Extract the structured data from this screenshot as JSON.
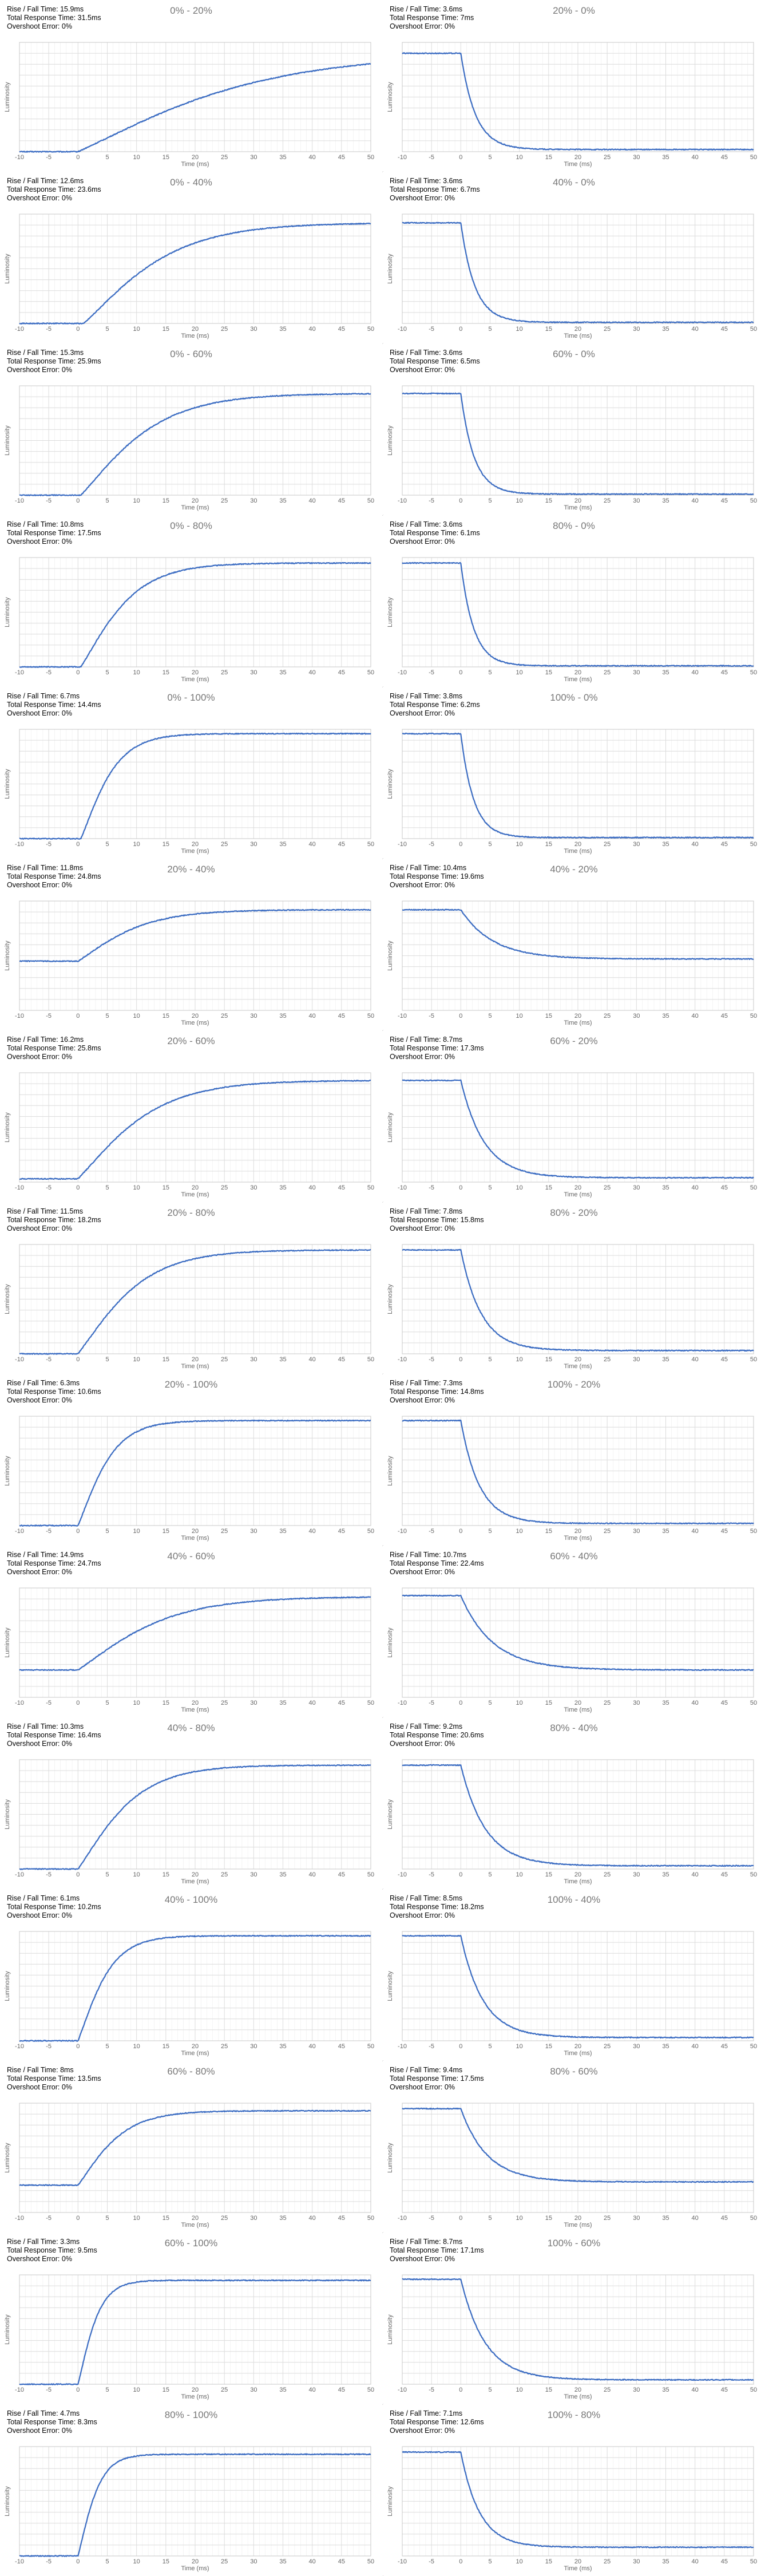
{
  "axis_label_x": "Time (ms)",
  "axis_label_y": "Luminosity",
  "x_ticks": [
    -10,
    -5,
    0,
    5,
    10,
    15,
    20,
    25,
    30,
    35,
    40,
    45,
    50
  ],
  "colors": {
    "line": "#3b6cc2",
    "grid": "#dcdcdc",
    "axis_text": "#666666",
    "title_text": "#777777",
    "divider": "#d6d6d6"
  },
  "stat_labels": {
    "rise_fall": "Rise / Fall Time: ",
    "total": "Total Response Time: ",
    "overshoot": "Overshoot Error: "
  },
  "chart_data": [
    {
      "type": "line",
      "title": "0% - 20%",
      "rise_fall_time": "15.9ms",
      "total_response_time": "31.5ms",
      "overshoot_error": "0%",
      "xlabel": "Time (ms)",
      "ylabel": "Luminosity",
      "xlim": [
        -10,
        50
      ],
      "y_start": 0.0,
      "y_end": 0.9,
      "start_delay_ms": 0.0,
      "time_constant_ms": 15.0,
      "direction": "rise"
    },
    {
      "type": "line",
      "title": "20% - 0%",
      "rise_fall_time": "3.6ms",
      "total_response_time": "7ms",
      "overshoot_error": "0%",
      "xlabel": "Time (ms)",
      "ylabel": "Luminosity",
      "xlim": [
        -10,
        50
      ],
      "y_start": 0.9,
      "y_end": 0.02,
      "start_delay_ms": 0.0,
      "time_constant_ms": 2.5,
      "direction": "fall"
    },
    {
      "type": "line",
      "title": "0% - 40%",
      "rise_fall_time": "12.6ms",
      "total_response_time": "23.6ms",
      "overshoot_error": "0%",
      "xlabel": "Time (ms)",
      "ylabel": "Luminosity",
      "xlim": [
        -10,
        50
      ],
      "y_start": 0.0,
      "y_end": 0.92,
      "start_delay_ms": 1.0,
      "time_constant_ms": 7.5,
      "direction": "rise"
    },
    {
      "type": "line",
      "title": "40% - 0%",
      "rise_fall_time": "3.6ms",
      "total_response_time": "6.7ms",
      "overshoot_error": "0%",
      "xlabel": "Time (ms)",
      "ylabel": "Luminosity",
      "xlim": [
        -10,
        50
      ],
      "y_start": 0.92,
      "y_end": 0.01,
      "start_delay_ms": 0.0,
      "time_constant_ms": 2.4,
      "direction": "fall"
    },
    {
      "type": "line",
      "title": "0% - 60%",
      "rise_fall_time": "15.3ms",
      "total_response_time": "25.9ms",
      "overshoot_error": "0%",
      "xlabel": "Time (ms)",
      "ylabel": "Luminosity",
      "xlim": [
        -10,
        50
      ],
      "y_start": 0.0,
      "y_end": 0.93,
      "start_delay_ms": 0.5,
      "time_constant_ms": 6.5,
      "direction": "rise"
    },
    {
      "type": "line",
      "title": "60% - 0%",
      "rise_fall_time": "3.6ms",
      "total_response_time": "6.5ms",
      "overshoot_error": "0%",
      "xlabel": "Time (ms)",
      "ylabel": "Luminosity",
      "xlim": [
        -10,
        50
      ],
      "y_start": 0.93,
      "y_end": 0.01,
      "start_delay_ms": 0.0,
      "time_constant_ms": 2.3,
      "direction": "fall"
    },
    {
      "type": "line",
      "title": "0% - 80%",
      "rise_fall_time": "10.8ms",
      "total_response_time": "17.5ms",
      "overshoot_error": "0%",
      "xlabel": "Time (ms)",
      "ylabel": "Luminosity",
      "xlim": [
        -10,
        50
      ],
      "y_start": 0.0,
      "y_end": 0.95,
      "start_delay_ms": 0.5,
      "time_constant_ms": 4.5,
      "direction": "rise"
    },
    {
      "type": "line",
      "title": "80% - 0%",
      "rise_fall_time": "3.6ms",
      "total_response_time": "6.1ms",
      "overshoot_error": "0%",
      "xlabel": "Time (ms)",
      "ylabel": "Luminosity",
      "xlim": [
        -10,
        50
      ],
      "y_start": 0.95,
      "y_end": 0.01,
      "start_delay_ms": 0.0,
      "time_constant_ms": 2.2,
      "direction": "fall"
    },
    {
      "type": "line",
      "title": "0% - 100%",
      "rise_fall_time": "6.7ms",
      "total_response_time": "14.4ms",
      "overshoot_error": "0%",
      "xlabel": "Time (ms)",
      "ylabel": "Luminosity",
      "xlim": [
        -10,
        50
      ],
      "y_start": 0.0,
      "y_end": 0.96,
      "start_delay_ms": 0.5,
      "time_constant_ms": 3.0,
      "direction": "rise"
    },
    {
      "type": "line",
      "title": "100% - 0%",
      "rise_fall_time": "3.8ms",
      "total_response_time": "6.2ms",
      "overshoot_error": "0%",
      "xlabel": "Time (ms)",
      "ylabel": "Luminosity",
      "xlim": [
        -10,
        50
      ],
      "y_start": 0.96,
      "y_end": 0.01,
      "start_delay_ms": 0.0,
      "time_constant_ms": 2.2,
      "direction": "fall"
    },
    {
      "type": "line",
      "title": "20% - 40%",
      "rise_fall_time": "11.8ms",
      "total_response_time": "24.8ms",
      "overshoot_error": "0%",
      "xlabel": "Time (ms)",
      "ylabel": "Luminosity",
      "xlim": [
        -10,
        50
      ],
      "y_start": 0.45,
      "y_end": 0.92,
      "start_delay_ms": 0.0,
      "time_constant_ms": 5.5,
      "direction": "rise"
    },
    {
      "type": "line",
      "title": "40% - 20%",
      "rise_fall_time": "10.4ms",
      "total_response_time": "19.6ms",
      "overshoot_error": "0%",
      "xlabel": "Time (ms)",
      "ylabel": "Luminosity",
      "xlim": [
        -10,
        50
      ],
      "y_start": 0.92,
      "y_end": 0.47,
      "start_delay_ms": 0.0,
      "time_constant_ms": 5.5,
      "direction": "fall"
    },
    {
      "type": "line",
      "title": "20% - 60%",
      "rise_fall_time": "16.2ms",
      "total_response_time": "25.8ms",
      "overshoot_error": "0%",
      "xlabel": "Time (ms)",
      "ylabel": "Luminosity",
      "xlim": [
        -10,
        50
      ],
      "y_start": 0.03,
      "y_end": 0.93,
      "start_delay_ms": 0.0,
      "time_constant_ms": 6.5,
      "direction": "rise"
    },
    {
      "type": "line",
      "title": "60% - 20%",
      "rise_fall_time": "8.7ms",
      "total_response_time": "17.3ms",
      "overshoot_error": "0%",
      "xlabel": "Time (ms)",
      "ylabel": "Luminosity",
      "xlim": [
        -10,
        50
      ],
      "y_start": 0.93,
      "y_end": 0.04,
      "start_delay_ms": 0.0,
      "time_constant_ms": 4.0,
      "direction": "fall"
    },
    {
      "type": "line",
      "title": "20% - 80%",
      "rise_fall_time": "11.5ms",
      "total_response_time": "18.2ms",
      "overshoot_error": "0%",
      "xlabel": "Time (ms)",
      "ylabel": "Luminosity",
      "xlim": [
        -10,
        50
      ],
      "y_start": 0.0,
      "y_end": 0.95,
      "start_delay_ms": 0.0,
      "time_constant_ms": 5.5,
      "direction": "rise"
    },
    {
      "type": "line",
      "title": "80% - 20%",
      "rise_fall_time": "7.8ms",
      "total_response_time": "15.8ms",
      "overshoot_error": "0%",
      "xlabel": "Time (ms)",
      "ylabel": "Luminosity",
      "xlim": [
        -10,
        50
      ],
      "y_start": 0.95,
      "y_end": 0.03,
      "start_delay_ms": 0.0,
      "time_constant_ms": 3.5,
      "direction": "fall"
    },
    {
      "type": "line",
      "title": "20% - 100%",
      "rise_fall_time": "6.3ms",
      "total_response_time": "10.6ms",
      "overshoot_error": "0%",
      "xlabel": "Time (ms)",
      "ylabel": "Luminosity",
      "xlim": [
        -10,
        50
      ],
      "y_start": 0.0,
      "y_end": 0.96,
      "start_delay_ms": 0.0,
      "time_constant_ms": 3.0,
      "direction": "rise"
    },
    {
      "type": "line",
      "title": "100% - 20%",
      "rise_fall_time": "7.3ms",
      "total_response_time": "14.8ms",
      "overshoot_error": "0%",
      "xlabel": "Time (ms)",
      "ylabel": "Luminosity",
      "xlim": [
        -10,
        50
      ],
      "y_start": 0.96,
      "y_end": 0.02,
      "start_delay_ms": 0.0,
      "time_constant_ms": 3.2,
      "direction": "fall"
    },
    {
      "type": "line",
      "title": "40% - 60%",
      "rise_fall_time": "14.9ms",
      "total_response_time": "24.7ms",
      "overshoot_error": "0%",
      "xlabel": "Time (ms)",
      "ylabel": "Luminosity",
      "xlim": [
        -10,
        50
      ],
      "y_start": 0.25,
      "y_end": 0.92,
      "start_delay_ms": 0.0,
      "time_constant_ms": 7.5,
      "direction": "rise"
    },
    {
      "type": "line",
      "title": "60% - 40%",
      "rise_fall_time": "10.7ms",
      "total_response_time": "22.4ms",
      "overshoot_error": "0%",
      "xlabel": "Time (ms)",
      "ylabel": "Luminosity",
      "xlim": [
        -10,
        50
      ],
      "y_start": 0.93,
      "y_end": 0.25,
      "start_delay_ms": 0.0,
      "time_constant_ms": 5.5,
      "direction": "fall"
    },
    {
      "type": "line",
      "title": "40% - 80%",
      "rise_fall_time": "10.3ms",
      "total_response_time": "16.4ms",
      "overshoot_error": "0%",
      "xlabel": "Time (ms)",
      "ylabel": "Luminosity",
      "xlim": [
        -10,
        50
      ],
      "y_start": 0.0,
      "y_end": 0.95,
      "start_delay_ms": 0.0,
      "time_constant_ms": 5.0,
      "direction": "rise"
    },
    {
      "type": "line",
      "title": "80% - 40%",
      "rise_fall_time": "9.2ms",
      "total_response_time": "20.6ms",
      "overshoot_error": "0%",
      "xlabel": "Time (ms)",
      "ylabel": "Luminosity",
      "xlim": [
        -10,
        50
      ],
      "y_start": 0.95,
      "y_end": 0.03,
      "start_delay_ms": 0.0,
      "time_constant_ms": 4.2,
      "direction": "fall"
    },
    {
      "type": "line",
      "title": "40% - 100%",
      "rise_fall_time": "6.1ms",
      "total_response_time": "10.2ms",
      "overshoot_error": "0%",
      "xlabel": "Time (ms)",
      "ylabel": "Luminosity",
      "xlim": [
        -10,
        50
      ],
      "y_start": 0.0,
      "y_end": 0.96,
      "start_delay_ms": 0.0,
      "time_constant_ms": 2.8,
      "direction": "rise"
    },
    {
      "type": "line",
      "title": "100% - 40%",
      "rise_fall_time": "8.5ms",
      "total_response_time": "18.2ms",
      "overshoot_error": "0%",
      "xlabel": "Time (ms)",
      "ylabel": "Luminosity",
      "xlim": [
        -10,
        50
      ],
      "y_start": 0.96,
      "y_end": 0.03,
      "start_delay_ms": 0.0,
      "time_constant_ms": 3.8,
      "direction": "fall"
    },
    {
      "type": "line",
      "title": "60% - 80%",
      "rise_fall_time": "8ms",
      "total_response_time": "13.5ms",
      "overshoot_error": "0%",
      "xlabel": "Time (ms)",
      "ylabel": "Luminosity",
      "xlim": [
        -10,
        50
      ],
      "y_start": 0.25,
      "y_end": 0.93,
      "start_delay_ms": 0.0,
      "time_constant_ms": 3.8,
      "direction": "rise"
    },
    {
      "type": "line",
      "title": "80% - 60%",
      "rise_fall_time": "9.4ms",
      "total_response_time": "17.5ms",
      "overshoot_error": "0%",
      "xlabel": "Time (ms)",
      "ylabel": "Luminosity",
      "xlim": [
        -10,
        50
      ],
      "y_start": 0.95,
      "y_end": 0.28,
      "start_delay_ms": 0.0,
      "time_constant_ms": 4.5,
      "direction": "fall"
    },
    {
      "type": "line",
      "title": "60% - 100%",
      "rise_fall_time": "3.3ms",
      "total_response_time": "9.5ms",
      "overshoot_error": "0%",
      "xlabel": "Time (ms)",
      "ylabel": "Luminosity",
      "xlim": [
        -10,
        50
      ],
      "y_start": 0.0,
      "y_end": 0.95,
      "start_delay_ms": 0.0,
      "time_constant_ms": 1.8,
      "direction": "rise"
    },
    {
      "type": "line",
      "title": "100% - 60%",
      "rise_fall_time": "8.7ms",
      "total_response_time": "17.1ms",
      "overshoot_error": "0%",
      "xlabel": "Time (ms)",
      "ylabel": "Luminosity",
      "xlim": [
        -10,
        50
      ],
      "y_start": 0.96,
      "y_end": 0.04,
      "start_delay_ms": 0.0,
      "time_constant_ms": 4.2,
      "direction": "fall"
    },
    {
      "type": "line",
      "title": "80% - 100%",
      "rise_fall_time": "4.7ms",
      "total_response_time": "8.3ms",
      "overshoot_error": "0%",
      "xlabel": "Time (ms)",
      "ylabel": "Luminosity",
      "xlim": [
        -10,
        50
      ],
      "y_start": 0.0,
      "y_end": 0.93,
      "start_delay_ms": 0.0,
      "time_constant_ms": 1.8,
      "direction": "rise"
    },
    {
      "type": "line",
      "title": "100% - 80%",
      "rise_fall_time": "7.1ms",
      "total_response_time": "12.6ms",
      "overshoot_error": "0%",
      "xlabel": "Time (ms)",
      "ylabel": "Luminosity",
      "xlim": [
        -10,
        50
      ],
      "y_start": 0.95,
      "y_end": 0.08,
      "start_delay_ms": 0.0,
      "time_constant_ms": 3.2,
      "direction": "fall"
    }
  ]
}
